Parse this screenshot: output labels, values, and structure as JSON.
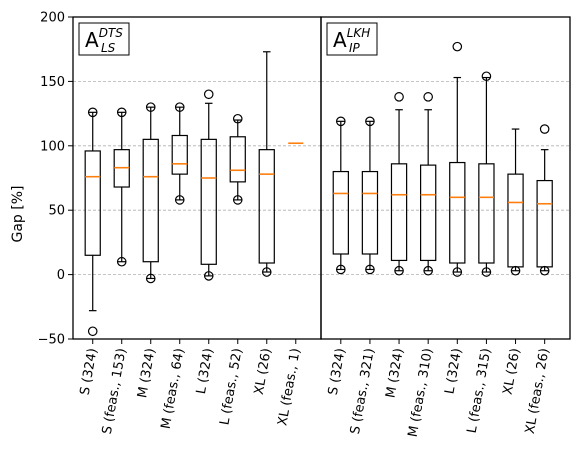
{
  "chart_data": {
    "type": "box",
    "ylabel": "Gap [%]",
    "ylim": [
      -50,
      200
    ],
    "yticks": [
      -50,
      0,
      50,
      100,
      150,
      200
    ],
    "grid": "horizontal dashed",
    "panels": [
      {
        "label_main": "A",
        "label_sup": "DTS",
        "label_sub": "LS",
        "boxes": [
          {
            "category": "S (324)",
            "q1": 15,
            "median": 76,
            "q3": 96,
            "whislo": -28,
            "whishi": 126,
            "fliers": [
              -44,
              126
            ]
          },
          {
            "category": "S (feas., 153)",
            "q1": 68,
            "median": 83,
            "q3": 97,
            "whislo": 10,
            "whishi": 126,
            "fliers": [
              10,
              126
            ]
          },
          {
            "category": "M (324)",
            "q1": 10,
            "median": 76,
            "q3": 105,
            "whislo": -3,
            "whishi": 130,
            "fliers": [
              -3,
              130
            ]
          },
          {
            "category": "M (feas., 64)",
            "q1": 78,
            "median": 86,
            "q3": 108,
            "whislo": 58,
            "whishi": 130,
            "fliers": [
              58,
              130
            ]
          },
          {
            "category": "L (324)",
            "q1": 8,
            "median": 75,
            "q3": 105,
            "whislo": -1,
            "whishi": 133,
            "fliers": [
              -1,
              140
            ]
          },
          {
            "category": "L (feas., 52)",
            "q1": 72,
            "median": 81,
            "q3": 107,
            "whislo": 58,
            "whishi": 120,
            "fliers": [
              58,
              121
            ]
          },
          {
            "category": "XL (26)",
            "q1": 9,
            "median": 78,
            "q3": 97,
            "whislo": 2,
            "whishi": 173,
            "fliers": [
              2
            ]
          },
          {
            "category": "XL (feas., 1)",
            "q1": 102,
            "median": 102,
            "q3": 102,
            "whislo": 102,
            "whishi": 102,
            "fliers": []
          }
        ]
      },
      {
        "label_main": "A",
        "label_sup": "LKH",
        "label_sub": "IP",
        "boxes": [
          {
            "category": "S (324)",
            "q1": 16,
            "median": 63,
            "q3": 80,
            "whislo": 4,
            "whishi": 119,
            "fliers": [
              4,
              119
            ]
          },
          {
            "category": "S (feas., 321)",
            "q1": 16,
            "median": 63,
            "q3": 80,
            "whislo": 4,
            "whishi": 119,
            "fliers": [
              4,
              119
            ]
          },
          {
            "category": "M (324)",
            "q1": 11,
            "median": 62,
            "q3": 86,
            "whislo": 3,
            "whishi": 128,
            "fliers": [
              3,
              138
            ]
          },
          {
            "category": "M (feas., 310)",
            "q1": 11,
            "median": 62,
            "q3": 85,
            "whislo": 3,
            "whishi": 128,
            "fliers": [
              3,
              138
            ]
          },
          {
            "category": "L (324)",
            "q1": 9,
            "median": 60,
            "q3": 87,
            "whislo": 2,
            "whishi": 153,
            "fliers": [
              2,
              177
            ]
          },
          {
            "category": "L (feas., 315)",
            "q1": 9,
            "median": 60,
            "q3": 86,
            "whislo": 2,
            "whishi": 153,
            "fliers": [
              2,
              154
            ]
          },
          {
            "category": "XL (26)",
            "q1": 6,
            "median": 56,
            "q3": 78,
            "whislo": 3,
            "whishi": 113,
            "fliers": [
              3
            ]
          },
          {
            "category": "XL (feas., 26)",
            "q1": 6,
            "median": 55,
            "q3": 73,
            "whislo": 3,
            "whishi": 97,
            "fliers": [
              3,
              113
            ]
          }
        ]
      }
    ],
    "colors": {
      "median": "#ff7f0e",
      "box": "#000000",
      "grid": "#b0b0b0"
    }
  }
}
